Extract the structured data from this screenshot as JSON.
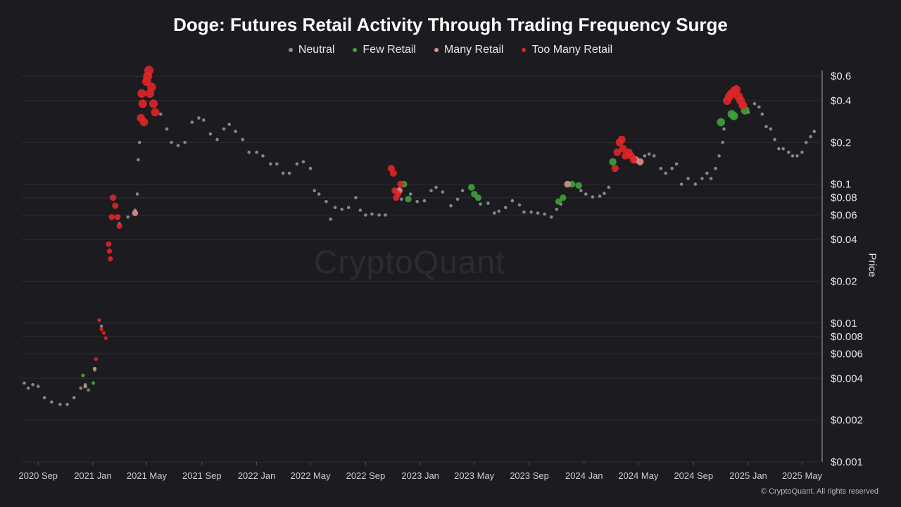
{
  "chart_data": {
    "type": "scatter",
    "title": "Doge: Futures Retail Activity Through Trading Frequency Surge",
    "ylabel": "Price",
    "y_scale": "log",
    "ylim": [
      0.001,
      0.7
    ],
    "xlim": [
      "2020-07-25",
      "2025-06-10"
    ],
    "x_tick_labels": [
      "2020 Sep",
      "2021 Jan",
      "2021 May",
      "2021 Sep",
      "2022 Jan",
      "2022 May",
      "2022 Sep",
      "2023 Jan",
      "2023 May",
      "2023 Sep",
      "2024 Jan",
      "2024 May",
      "2024 Sep",
      "2025 Jan",
      "2025 May"
    ],
    "x_tick_dates": [
      "2020-09-01",
      "2021-01-01",
      "2021-05-01",
      "2021-09-01",
      "2022-01-01",
      "2022-05-01",
      "2022-09-01",
      "2023-01-01",
      "2023-05-01",
      "2023-09-01",
      "2024-01-01",
      "2024-05-01",
      "2024-09-01",
      "2025-01-01",
      "2025-05-01"
    ],
    "y_ticks": [
      0.001,
      0.002,
      0.004,
      0.006,
      0.008,
      0.01,
      0.02,
      0.04,
      0.06,
      0.08,
      0.1,
      0.2,
      0.4,
      0.6
    ],
    "y_tick_labels": [
      "$0.001",
      "$0.002",
      "$0.004",
      "$0.006",
      "$0.008",
      "$0.01",
      "$0.02",
      "$0.04",
      "$0.06",
      "$0.08",
      "$0.1",
      "$0.2",
      "$0.4",
      "$0.6"
    ],
    "legend_position": "top-center",
    "grid": "horizontal",
    "series": [
      {
        "name": "Neutral",
        "color": "#8c8c96",
        "points": [
          [
            "2020-08-01",
            0.0037
          ],
          [
            "2020-08-10",
            0.0034
          ],
          [
            "2020-08-20",
            0.0036
          ],
          [
            "2020-09-01",
            0.0035
          ],
          [
            "2020-09-15",
            0.0029
          ],
          [
            "2020-10-01",
            0.0027
          ],
          [
            "2020-10-20",
            0.0026
          ],
          [
            "2020-11-05",
            0.0026
          ],
          [
            "2020-11-20",
            0.0029
          ],
          [
            "2020-12-05",
            0.0034
          ],
          [
            "2020-12-15",
            0.0036
          ],
          [
            "2021-01-20",
            0.0095
          ],
          [
            "2021-03-01",
            0.052
          ],
          [
            "2021-03-20",
            0.058
          ],
          [
            "2021-04-05",
            0.065
          ],
          [
            "2021-04-10",
            0.085
          ],
          [
            "2021-04-12",
            0.15
          ],
          [
            "2021-04-15",
            0.2
          ],
          [
            "2021-06-01",
            0.32
          ],
          [
            "2021-06-15",
            0.25
          ],
          [
            "2021-06-25",
            0.2
          ],
          [
            "2021-07-10",
            0.19
          ],
          [
            "2021-07-25",
            0.2
          ],
          [
            "2021-08-10",
            0.28
          ],
          [
            "2021-08-25",
            0.3
          ],
          [
            "2021-09-05",
            0.29
          ],
          [
            "2021-09-20",
            0.23
          ],
          [
            "2021-10-05",
            0.21
          ],
          [
            "2021-10-20",
            0.25
          ],
          [
            "2021-11-01",
            0.27
          ],
          [
            "2021-11-15",
            0.24
          ],
          [
            "2021-12-01",
            0.21
          ],
          [
            "2021-12-15",
            0.17
          ],
          [
            "2022-01-01",
            0.17
          ],
          [
            "2022-01-15",
            0.16
          ],
          [
            "2022-02-01",
            0.14
          ],
          [
            "2022-02-15",
            0.14
          ],
          [
            "2022-03-01",
            0.12
          ],
          [
            "2022-03-15",
            0.12
          ],
          [
            "2022-04-01",
            0.14
          ],
          [
            "2022-04-15",
            0.145
          ],
          [
            "2022-05-01",
            0.13
          ],
          [
            "2022-05-10",
            0.09
          ],
          [
            "2022-05-20",
            0.085
          ],
          [
            "2022-06-05",
            0.075
          ],
          [
            "2022-06-15",
            0.056
          ],
          [
            "2022-06-25",
            0.068
          ],
          [
            "2022-07-10",
            0.066
          ],
          [
            "2022-07-25",
            0.068
          ],
          [
            "2022-08-10",
            0.08
          ],
          [
            "2022-08-20",
            0.065
          ],
          [
            "2022-09-01",
            0.06
          ],
          [
            "2022-09-15",
            0.061
          ],
          [
            "2022-10-01",
            0.06
          ],
          [
            "2022-10-15",
            0.06
          ],
          [
            "2022-11-20",
            0.078
          ],
          [
            "2022-12-10",
            0.085
          ],
          [
            "2022-12-25",
            0.075
          ],
          [
            "2023-01-10",
            0.076
          ],
          [
            "2023-01-25",
            0.09
          ],
          [
            "2023-02-05",
            0.095
          ],
          [
            "2023-02-20",
            0.088
          ],
          [
            "2023-03-10",
            0.07
          ],
          [
            "2023-03-25",
            0.078
          ],
          [
            "2023-04-05",
            0.09
          ],
          [
            "2023-05-15",
            0.072
          ],
          [
            "2023-06-01",
            0.073
          ],
          [
            "2023-06-15",
            0.062
          ],
          [
            "2023-06-25",
            0.064
          ],
          [
            "2023-07-10",
            0.068
          ],
          [
            "2023-07-25",
            0.076
          ],
          [
            "2023-08-10",
            0.071
          ],
          [
            "2023-08-20",
            0.063
          ],
          [
            "2023-09-05",
            0.063
          ],
          [
            "2023-09-20",
            0.062
          ],
          [
            "2023-10-05",
            0.061
          ],
          [
            "2023-10-20",
            0.058
          ],
          [
            "2023-11-01",
            0.066
          ],
          [
            "2023-11-10",
            0.072
          ],
          [
            "2023-12-25",
            0.09
          ],
          [
            "2024-01-05",
            0.085
          ],
          [
            "2024-01-20",
            0.081
          ],
          [
            "2024-02-05",
            0.082
          ],
          [
            "2024-02-15",
            0.086
          ],
          [
            "2024-02-25",
            0.095
          ],
          [
            "2024-05-15",
            0.16
          ],
          [
            "2024-05-25",
            0.165
          ],
          [
            "2024-06-05",
            0.16
          ],
          [
            "2024-06-20",
            0.13
          ],
          [
            "2024-07-01",
            0.12
          ],
          [
            "2024-07-15",
            0.13
          ],
          [
            "2024-07-25",
            0.14
          ],
          [
            "2024-08-05",
            0.1
          ],
          [
            "2024-08-20",
            0.11
          ],
          [
            "2024-09-05",
            0.1
          ],
          [
            "2024-09-20",
            0.11
          ],
          [
            "2024-10-01",
            0.12
          ],
          [
            "2024-10-10",
            0.11
          ],
          [
            "2024-10-20",
            0.13
          ],
          [
            "2024-10-28",
            0.16
          ],
          [
            "2024-11-05",
            0.2
          ],
          [
            "2024-11-08",
            0.25
          ],
          [
            "2025-01-01",
            0.33
          ],
          [
            "2025-01-15",
            0.38
          ],
          [
            "2025-01-25",
            0.36
          ],
          [
            "2025-02-01",
            0.32
          ],
          [
            "2025-02-10",
            0.26
          ],
          [
            "2025-02-20",
            0.25
          ],
          [
            "2025-03-01",
            0.21
          ],
          [
            "2025-03-10",
            0.18
          ],
          [
            "2025-03-20",
            0.18
          ],
          [
            "2025-04-01",
            0.17
          ],
          [
            "2025-04-10",
            0.16
          ],
          [
            "2025-04-20",
            0.16
          ],
          [
            "2025-05-01",
            0.17
          ],
          [
            "2025-05-10",
            0.2
          ],
          [
            "2025-05-20",
            0.22
          ],
          [
            "2025-05-28",
            0.24
          ]
        ]
      },
      {
        "name": "Few Retail",
        "color": "#3fa33a",
        "points": [
          [
            "2020-12-10",
            0.0042
          ],
          [
            "2020-12-22",
            0.0033
          ],
          [
            "2021-01-02",
            0.0037
          ],
          [
            "2021-01-05",
            0.0046
          ],
          [
            "2022-11-25",
            0.1
          ],
          [
            "2022-12-05",
            0.078
          ],
          [
            "2023-04-25",
            0.095
          ],
          [
            "2023-05-01",
            0.085
          ],
          [
            "2023-05-10",
            0.08
          ],
          [
            "2023-11-05",
            0.075
          ],
          [
            "2023-11-15",
            0.08
          ],
          [
            "2023-12-05",
            0.1
          ],
          [
            "2023-12-20",
            0.098
          ],
          [
            "2024-03-05",
            0.145
          ],
          [
            "2024-11-01",
            0.28
          ],
          [
            "2024-11-25",
            0.32
          ],
          [
            "2024-11-30",
            0.31
          ],
          [
            "2024-12-25",
            0.34
          ]
        ]
      },
      {
        "name": "Many Retail",
        "color": "#e08e8a",
        "points": [
          [
            "2020-12-15",
            0.0035
          ],
          [
            "2021-01-05",
            0.0047
          ],
          [
            "2021-04-05",
            0.062
          ],
          [
            "2022-11-15",
            0.09
          ],
          [
            "2023-11-25",
            0.1
          ],
          [
            "2024-04-25",
            0.15
          ],
          [
            "2024-05-05",
            0.145
          ]
        ]
      },
      {
        "name": "Too Many Retail",
        "color": "#e02626",
        "points": [
          [
            "2021-01-08",
            0.0055
          ],
          [
            "2021-01-15",
            0.0105
          ],
          [
            "2021-01-20",
            0.009
          ],
          [
            "2021-01-25",
            0.0085
          ],
          [
            "2021-01-30",
            0.0078
          ],
          [
            "2021-02-05",
            0.037
          ],
          [
            "2021-02-07",
            0.033
          ],
          [
            "2021-02-09",
            0.029
          ],
          [
            "2021-02-12",
            0.058
          ],
          [
            "2021-02-15",
            0.08
          ],
          [
            "2021-02-20",
            0.07
          ],
          [
            "2021-02-25",
            0.058
          ],
          [
            "2021-03-01",
            0.05
          ],
          [
            "2021-04-18",
            0.3
          ],
          [
            "2021-04-20",
            0.45
          ],
          [
            "2021-04-22",
            0.38
          ],
          [
            "2021-04-25",
            0.28
          ],
          [
            "2021-05-01",
            0.55
          ],
          [
            "2021-05-03",
            0.6
          ],
          [
            "2021-05-06",
            0.66
          ],
          [
            "2021-05-08",
            0.45
          ],
          [
            "2021-05-12",
            0.5
          ],
          [
            "2021-05-16",
            0.38
          ],
          [
            "2021-05-20",
            0.33
          ],
          [
            "2022-10-28",
            0.13
          ],
          [
            "2022-11-02",
            0.12
          ],
          [
            "2022-11-05",
            0.09
          ],
          [
            "2022-11-08",
            0.08
          ],
          [
            "2022-11-12",
            0.085
          ],
          [
            "2022-11-18",
            0.1
          ],
          [
            "2024-03-10",
            0.13
          ],
          [
            "2024-03-15",
            0.17
          ],
          [
            "2024-03-20",
            0.2
          ],
          [
            "2024-03-25",
            0.21
          ],
          [
            "2024-03-28",
            0.18
          ],
          [
            "2024-04-02",
            0.16
          ],
          [
            "2024-04-10",
            0.17
          ],
          [
            "2024-04-15",
            0.16
          ],
          [
            "2024-04-20",
            0.15
          ],
          [
            "2024-11-15",
            0.4
          ],
          [
            "2024-11-20",
            0.43
          ],
          [
            "2024-11-25",
            0.45
          ],
          [
            "2024-12-01",
            0.47
          ],
          [
            "2024-12-05",
            0.48
          ],
          [
            "2024-12-10",
            0.43
          ],
          [
            "2024-12-15",
            0.4
          ],
          [
            "2024-12-20",
            0.37
          ]
        ]
      }
    ]
  },
  "watermark": "CryptoQuant",
  "copyright": "© CryptoQuant. All rights reserved"
}
